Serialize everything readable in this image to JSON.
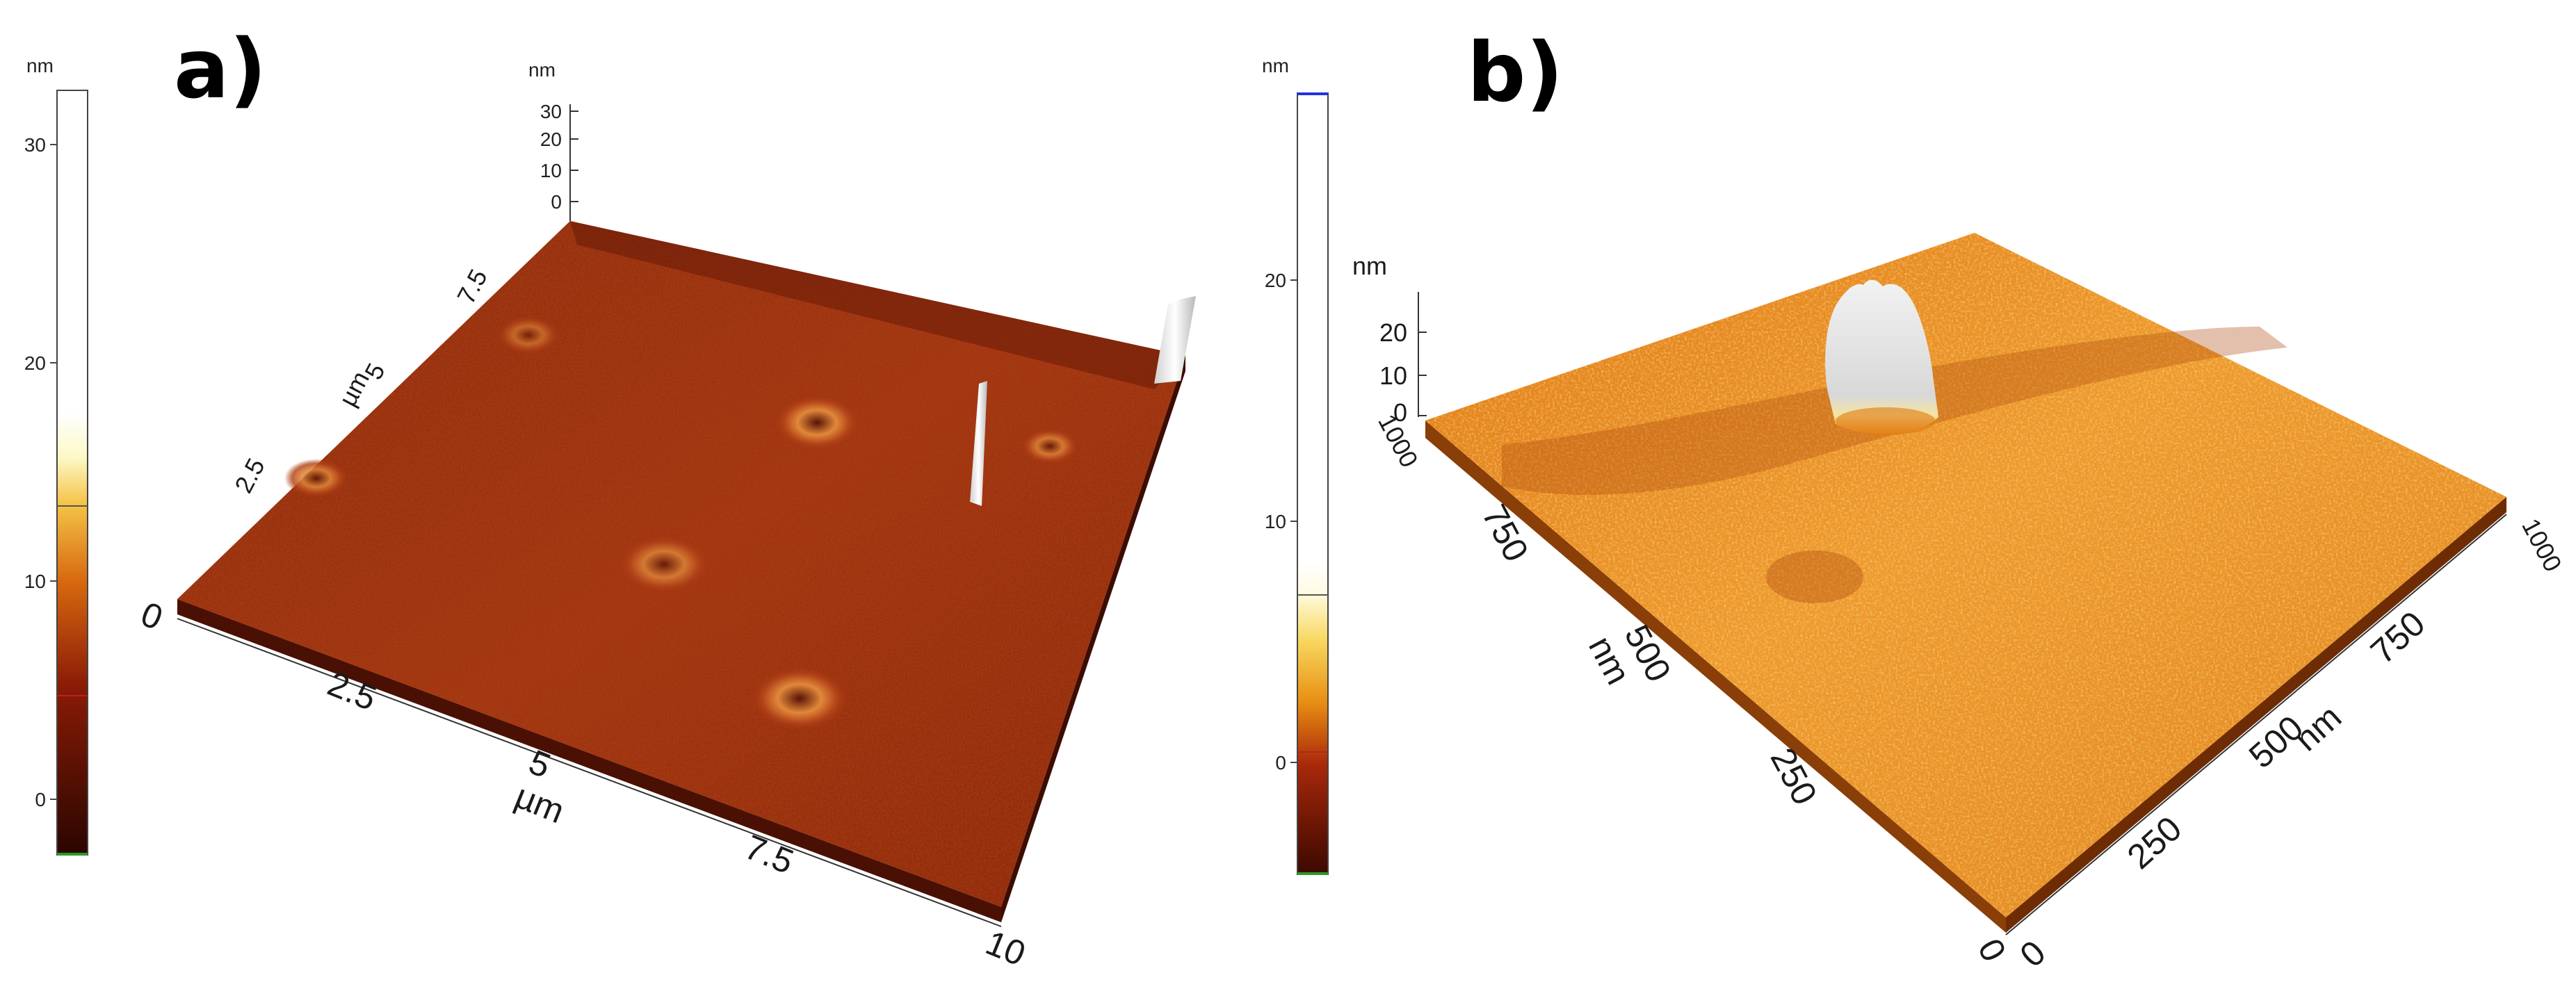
{
  "panels": [
    {
      "id": "a",
      "label": "a)",
      "colorbar": {
        "unit": "nm",
        "ticks": [
          "30",
          "20",
          "10",
          "0"
        ]
      },
      "z_axis": {
        "unit": "nm",
        "ticks": [
          "30",
          "20",
          "10",
          "0"
        ]
      },
      "x_axis": {
        "unit": "µm",
        "ticks": [
          "0",
          "2.5",
          "5",
          "7.5",
          "10"
        ]
      },
      "y_axis": {
        "unit": "µm",
        "ticks": [
          "2.5",
          "5",
          "7.5"
        ]
      }
    },
    {
      "id": "b",
      "label": "b)",
      "colorbar": {
        "unit": "nm",
        "ticks": [
          "20",
          "10",
          "0"
        ]
      },
      "z_axis": {
        "unit": "nm",
        "ticks": [
          "20",
          "10",
          "0"
        ]
      },
      "x_axis": {
        "unit": "nm",
        "ticks": [
          "0",
          "250",
          "500",
          "750",
          "1000"
        ]
      },
      "y_axis": {
        "unit": "nm",
        "ticks": [
          "0",
          "250",
          "500",
          "750",
          "1000"
        ]
      }
    }
  ]
}
